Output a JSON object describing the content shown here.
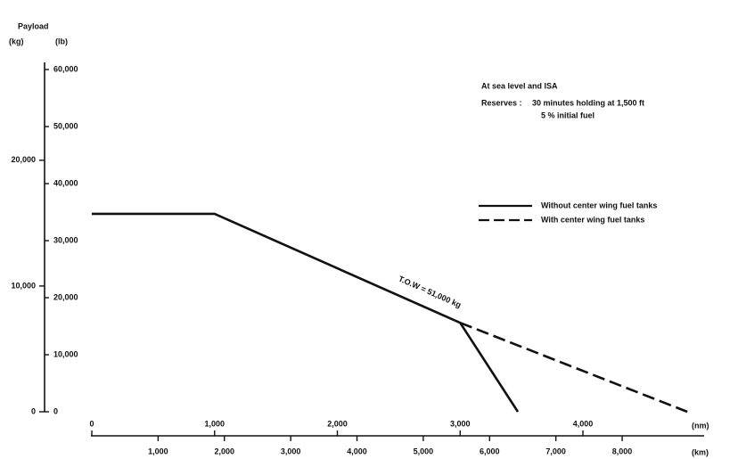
{
  "chart_data": {
    "type": "line",
    "title": "Payload",
    "y_label": "(lb)",
    "y2_label": "(kg)",
    "x_label": "(nm)",
    "x2_label": "(km)",
    "annotations": [
      "At sea level and ISA",
      "Reserves  :",
      "30 minutes holding at 1,500 ft",
      "5 % initial fuel",
      "T.O.W = 51,000 kg"
    ],
    "xlim": [
      0,
      4900
    ],
    "xticks": [
      0,
      {
        "value": 1000,
        "label": "1,000"
      },
      {
        "value": 2000,
        "label": "2,000"
      },
      {
        "value": 3000,
        "label": "3,000"
      },
      {
        "value": 4000,
        "label": "4,000"
      }
    ],
    "x2lim": [
      0,
      9075
    ],
    "x2ticks": [
      {
        "value": 1000,
        "label": "1,000"
      },
      {
        "value": 2000,
        "label": "2,000"
      },
      {
        "value": 3000,
        "label": "3,000"
      },
      {
        "value": 4000,
        "label": "4,000"
      },
      {
        "value": 5000,
        "label": "5,000"
      },
      {
        "value": 6000,
        "label": "6,000"
      },
      {
        "value": 7000,
        "label": "7,000"
      },
      {
        "value": 8000,
        "label": "8,000"
      }
    ],
    "ylim": [
      0,
      60000
    ],
    "yticks": [
      0,
      {
        "value": 10000,
        "label": "10,000"
      },
      {
        "value": 20000,
        "label": "20,000"
      },
      {
        "value": 30000,
        "label": "30,000"
      },
      {
        "value": 40000,
        "label": "40,000"
      },
      {
        "value": 50000,
        "label": "50,000"
      },
      {
        "value": 60000,
        "label": "60,000"
      }
    ],
    "y2lim": [
      0,
      27216
    ],
    "y2ticks": [
      0,
      {
        "value": 10000,
        "label": "10,000"
      },
      {
        "value": 20000,
        "label": "20,000"
      }
    ],
    "series": [
      {
        "name": "Without center wing fuel tanks",
        "color": "#111111",
        "linestyle": "solid",
        "x": [
          0,
          1000,
          3000,
          3470
        ],
        "values": [
          34700,
          34700,
          15600,
          0
        ]
      },
      {
        "name": "With center wing fuel tanks",
        "color": "#111111",
        "linestyle": "dashed",
        "x": [
          3000,
          4850
        ],
        "values": [
          15600,
          0
        ]
      }
    ]
  }
}
